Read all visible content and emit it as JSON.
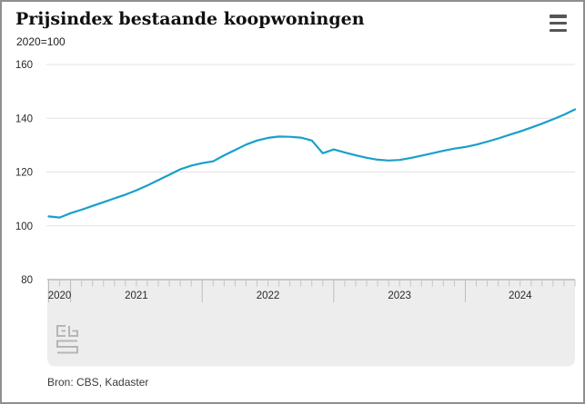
{
  "header": {
    "title": "Prijsindex bestaande koopwoningen",
    "subtitle": "2020=100"
  },
  "footer": {
    "source": "Bron: CBS, Kadaster"
  },
  "colors": {
    "line": "#18a0c9",
    "grid": "#e3e3e3",
    "axis": "#a8a8a8",
    "tick_minor": "#c6c6c6",
    "tick_major": "#bdbdbd",
    "band": "#ededed",
    "label": "#2a2a2a",
    "logo": "#b6b6b6",
    "menu_icon": "#565656"
  },
  "chart_data": {
    "type": "line",
    "title": "Prijsindex bestaande koopwoningen",
    "unit": "2020=100",
    "frequency": "monthly",
    "grid": "horizontal",
    "legend_position": "none",
    "ylim": [
      80,
      160
    ],
    "y_ticks": [
      80,
      100,
      120,
      140,
      160
    ],
    "year_labels": [
      "2020",
      "2021",
      "2022",
      "2023",
      "2024"
    ],
    "source": "Bron: CBS, Kadaster",
    "months": [
      "2020-11",
      "2020-12",
      "2021-01",
      "2021-02",
      "2021-03",
      "2021-04",
      "2021-05",
      "2021-06",
      "2021-07",
      "2021-08",
      "2021-09",
      "2021-10",
      "2021-11",
      "2021-12",
      "2022-01",
      "2022-02",
      "2022-03",
      "2022-04",
      "2022-05",
      "2022-06",
      "2022-07",
      "2022-08",
      "2022-09",
      "2022-10",
      "2022-11",
      "2022-12",
      "2023-01",
      "2023-02",
      "2023-03",
      "2023-04",
      "2023-05",
      "2023-06",
      "2023-07",
      "2023-08",
      "2023-09",
      "2023-10",
      "2023-11",
      "2023-12",
      "2024-01",
      "2024-02",
      "2024-03",
      "2024-04",
      "2024-05",
      "2024-06",
      "2024-07",
      "2024-08",
      "2024-09",
      "2024-10",
      "2024-11"
    ],
    "series": [
      {
        "name": "Prijsindex bestaande koopwoningen (2020=100)",
        "values": [
          103.5,
          103.1,
          104.7,
          106.0,
          107.4,
          108.8,
          110.2,
          111.6,
          113.2,
          115.0,
          117.0,
          119.0,
          121.0,
          122.4,
          123.3,
          124.0,
          126.2,
          128.2,
          130.2,
          131.7,
          132.7,
          133.2,
          133.1,
          132.8,
          131.7,
          127.0,
          128.4,
          127.3,
          126.2,
          125.3,
          124.6,
          124.3,
          124.5,
          125.2,
          126.1,
          127.0,
          127.9,
          128.7,
          129.3,
          130.2,
          131.3,
          132.5,
          133.8,
          135.1,
          136.5,
          138.0,
          139.6,
          141.3,
          143.3
        ]
      }
    ]
  }
}
